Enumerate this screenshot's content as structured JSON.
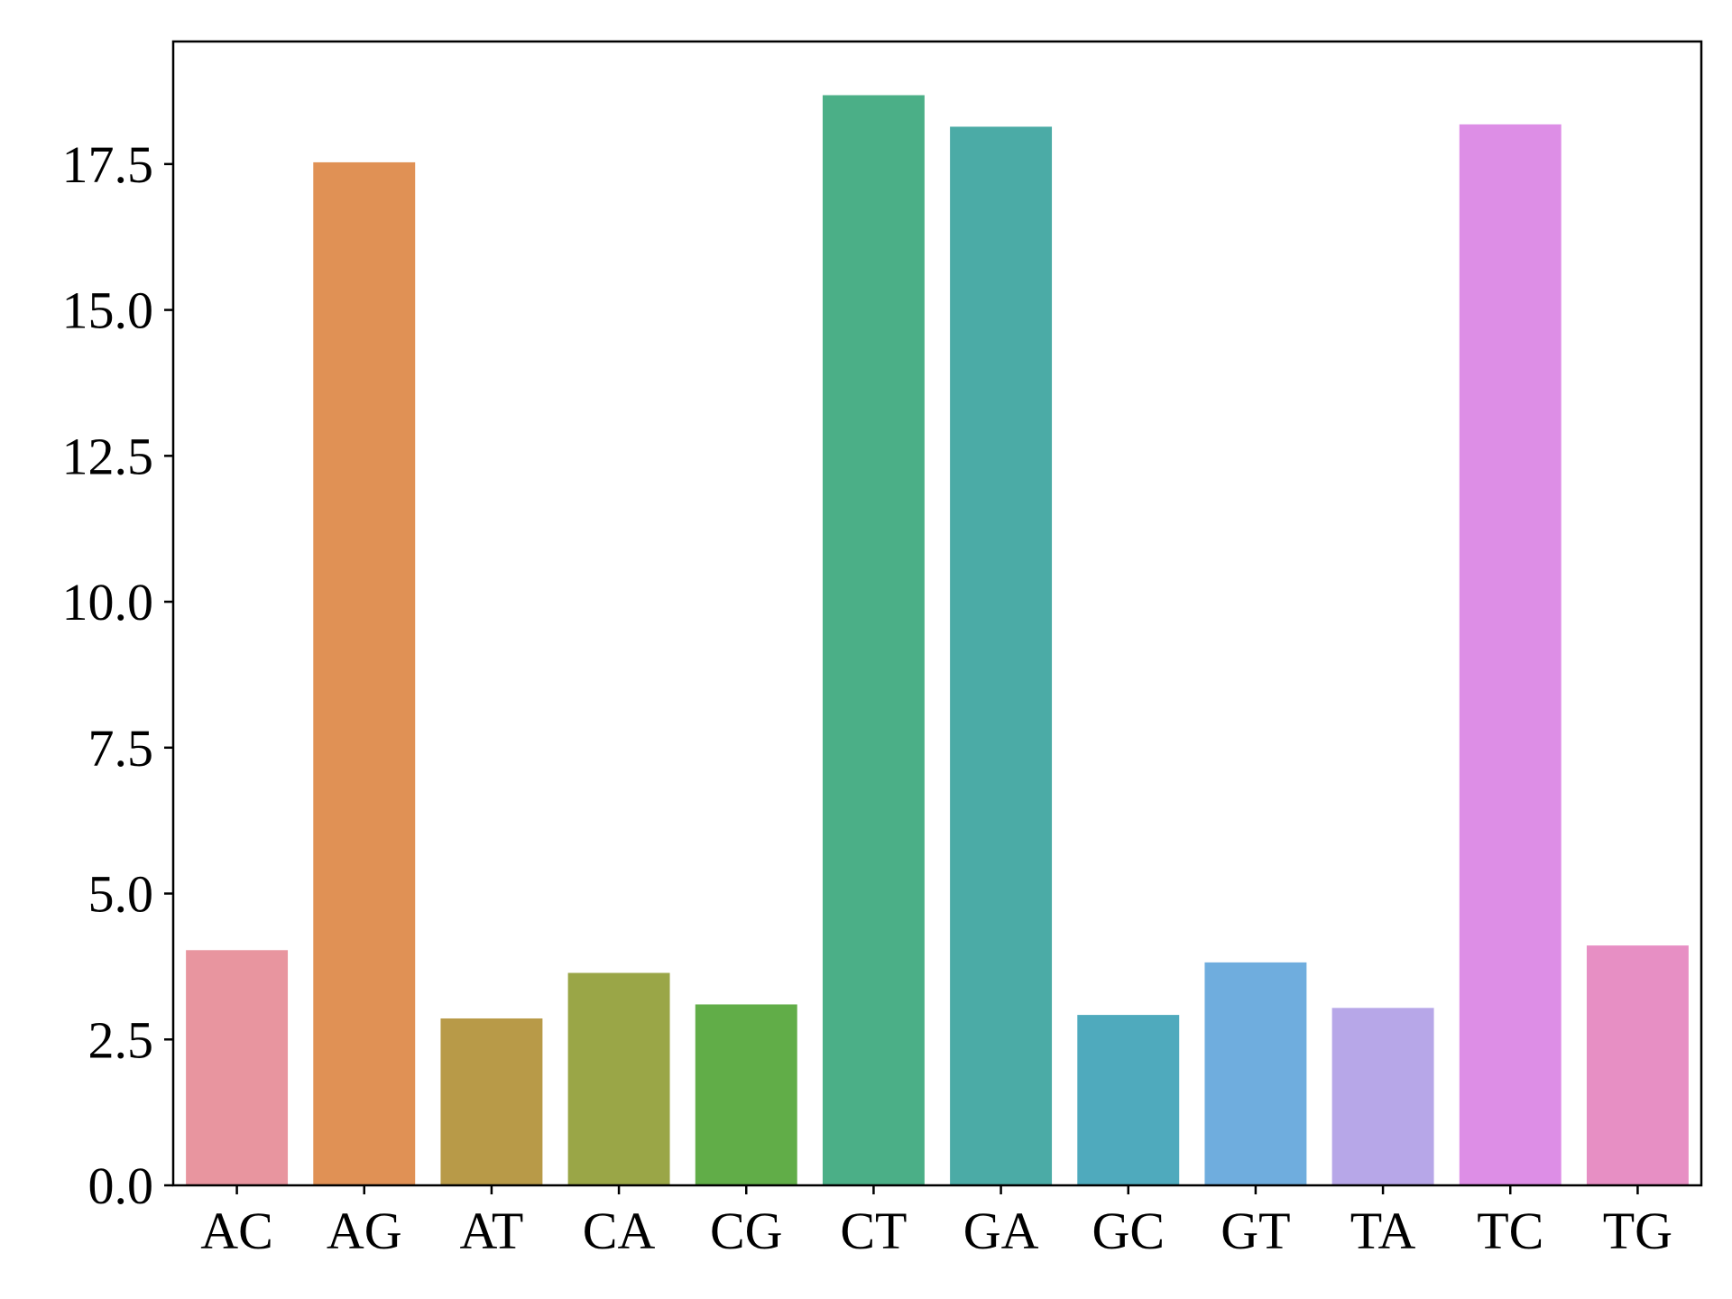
{
  "chart_data": {
    "type": "bar",
    "title": "",
    "xlabel": "",
    "ylabel": "",
    "categories": [
      "AC",
      "AG",
      "AT",
      "CA",
      "CG",
      "CT",
      "GA",
      "GC",
      "GT",
      "TA",
      "TC",
      "TG"
    ],
    "values": [
      4.03,
      17.53,
      2.86,
      3.64,
      3.1,
      18.68,
      18.14,
      2.92,
      3.82,
      3.04,
      18.18,
      4.11
    ],
    "colors": [
      "#e8959f",
      "#e09155",
      "#b89a48",
      "#9aa647",
      "#61ad48",
      "#4baf87",
      "#4baba6",
      "#4faabd",
      "#6fadde",
      "#b7a7e8",
      "#dd8ee6",
      "#e78fc4"
    ],
    "ylim": [
      0,
      19.6
    ],
    "yticks": [
      0.0,
      2.5,
      5.0,
      7.5,
      10.0,
      12.5,
      15.0,
      17.5
    ],
    "ytick_labels": [
      "0.0",
      "2.5",
      "5.0",
      "7.5",
      "10.0",
      "12.5",
      "15.0",
      "17.5"
    ],
    "grid": false,
    "legend": "none"
  }
}
